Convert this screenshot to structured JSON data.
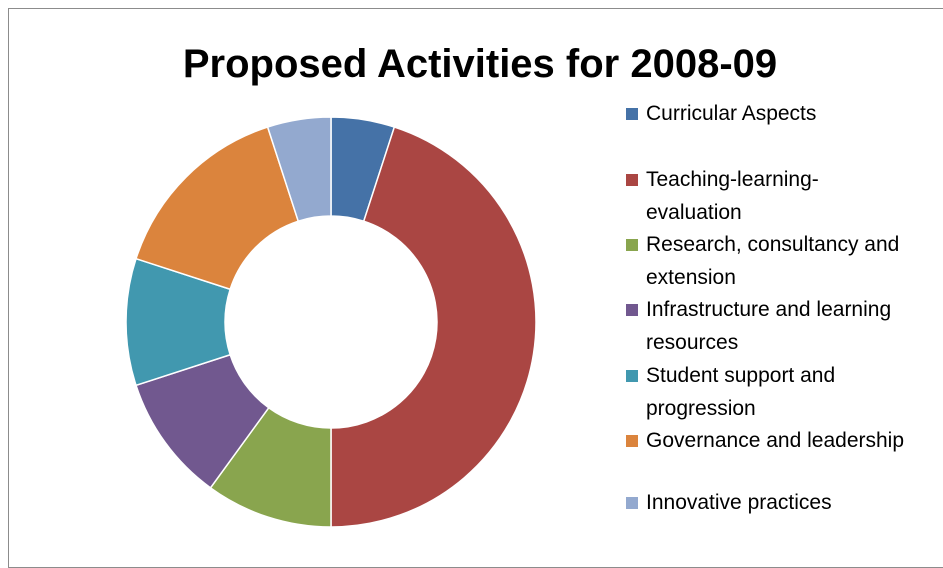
{
  "chart_data": {
    "type": "donut",
    "title": "Proposed Activities for 2008-09",
    "legend_position": "right",
    "series": [
      {
        "label": "Curricular Aspects",
        "value": 5,
        "color": "#4572a7"
      },
      {
        "label": "Teaching-learning-\nevaluation",
        "value": 45,
        "color": "#aa4643"
      },
      {
        "label": " Research, consultancy and\nextension",
        "value": 10,
        "color": "#89a54e"
      },
      {
        "label": "Infrastructure and learning\nresources",
        "value": 10,
        "color": "#71588f"
      },
      {
        "label": "Student support and\nprogression",
        "value": 10,
        "color": "#4198af"
      },
      {
        "label": "Governance and leadership",
        "value": 15,
        "color": "#db843d"
      },
      {
        "label": " Innovative practices",
        "value": 5,
        "color": "#93a9cf"
      }
    ]
  }
}
